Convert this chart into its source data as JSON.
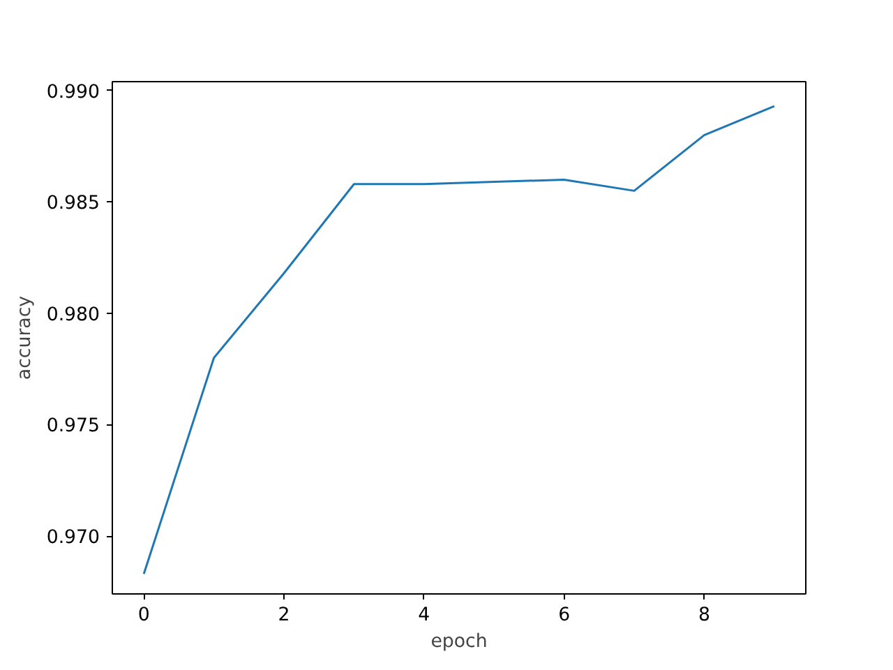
{
  "chart_data": {
    "type": "line",
    "xlabel": "epoch",
    "ylabel": "accuracy",
    "x": [
      0,
      1,
      2,
      3,
      4,
      5,
      6,
      7,
      8,
      9
    ],
    "series": [
      {
        "color": "#1f77b4",
        "values": [
          0.9683,
          0.978,
          0.9818,
          0.9858,
          0.9858,
          0.9859,
          0.986,
          0.9855,
          0.988,
          0.9893
        ]
      }
    ],
    "xlim": [
      -0.45,
      9.45
    ],
    "ylim": [
      0.9674,
      0.9904
    ],
    "xticks": [
      0,
      2,
      4,
      6,
      8
    ],
    "yticks": [
      {
        "value": 0.97,
        "label": "0.970"
      },
      {
        "value": 0.975,
        "label": "0.975"
      },
      {
        "value": 0.98,
        "label": "0.980"
      },
      {
        "value": 0.985,
        "label": "0.985"
      },
      {
        "value": 0.99,
        "label": "0.990"
      }
    ],
    "grid": false,
    "marker": "none",
    "line_style": "solid"
  }
}
